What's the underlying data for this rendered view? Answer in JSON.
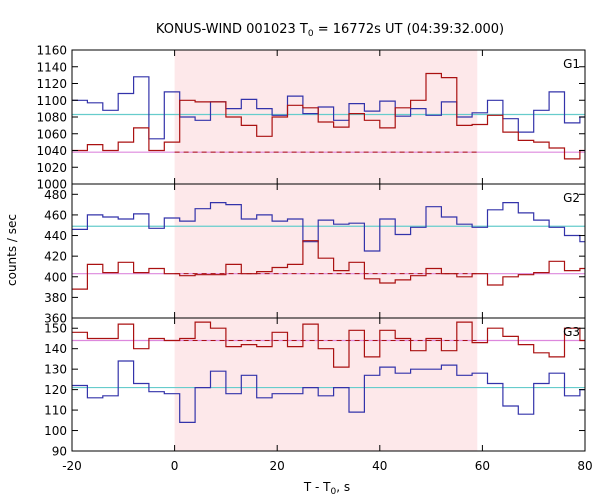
{
  "chart_data": {
    "type": "line",
    "title_main": "KONUS-WIND 001023 T",
    "title_sub": "0",
    "title_rest": " = 16772s UT (04:39:32.000)",
    "xlabel_main": "T - T",
    "xlabel_sub": "0",
    "xlabel_rest": ", s",
    "ylabel": "counts / sec",
    "xlim": [
      -20,
      80
    ],
    "xticks": [
      -20,
      0,
      20,
      40,
      60,
      80
    ],
    "xtick_labels": [
      "-20",
      "0",
      "20",
      "40",
      "60",
      "80"
    ],
    "shaded_interval": [
      0,
      59
    ],
    "shade_color": "#fde8ea",
    "colors": {
      "blue": "#3333aa",
      "red": "#aa1111",
      "bg_line": "#66cccc",
      "avg_line": "#dd88dd"
    },
    "panels": [
      {
        "name": "G1",
        "ylim": [
          1000,
          1160
        ],
        "yticks": [
          1000,
          1020,
          1040,
          1060,
          1080,
          1100,
          1120,
          1140,
          1160
        ],
        "ytick_labels": [
          "1000",
          "1020",
          "1040",
          "1060",
          "1080",
          "1100",
          "1120",
          "1140",
          "1160"
        ],
        "background_level": 1083,
        "average_level": 1038,
        "average_interval": [
          0,
          59
        ],
        "blue_series": {
          "x": [
            -20,
            -17,
            -14,
            -11,
            -8,
            -5,
            -2,
            1,
            4,
            7,
            10,
            13,
            16,
            19,
            22,
            25,
            28,
            31,
            34,
            37,
            40,
            43,
            46,
            49,
            52,
            55,
            58,
            61,
            64,
            67,
            70,
            73,
            76,
            79
          ],
          "y": [
            1100,
            1097,
            1088,
            1108,
            1128,
            1054,
            1110,
            1080,
            1076,
            1098,
            1090,
            1101,
            1090,
            1082,
            1105,
            1084,
            1092,
            1076,
            1096,
            1087,
            1099,
            1081,
            1090,
            1082,
            1098,
            1080,
            1085,
            1100,
            1078,
            1062,
            1088,
            1110,
            1073,
            1080
          ]
        },
        "red_series": {
          "x": [
            -20,
            -17,
            -14,
            -11,
            -8,
            -5,
            -2,
            1,
            4,
            7,
            10,
            13,
            16,
            19,
            22,
            25,
            28,
            31,
            34,
            37,
            40,
            43,
            46,
            49,
            52,
            55,
            58,
            61,
            64,
            67,
            70,
            73,
            76,
            79
          ],
          "y": [
            1040,
            1047,
            1040,
            1050,
            1067,
            1040,
            1050,
            1100,
            1098,
            1098,
            1080,
            1070,
            1057,
            1080,
            1094,
            1091,
            1074,
            1068,
            1084,
            1076,
            1067,
            1091,
            1100,
            1132,
            1127,
            1070,
            1071,
            1082,
            1062,
            1052,
            1050,
            1043,
            1030,
            1040
          ]
        }
      },
      {
        "name": "G2",
        "ylim": [
          360,
          490
        ],
        "yticks": [
          360,
          380,
          400,
          420,
          440,
          460,
          480
        ],
        "ytick_labels": [
          "360",
          "380",
          "400",
          "420",
          "440",
          "460",
          "480"
        ],
        "background_level": 449,
        "average_level": 403,
        "average_interval": [
          0,
          59
        ],
        "blue_series": {
          "x": [
            -20,
            -17,
            -14,
            -11,
            -8,
            -5,
            -2,
            1,
            4,
            7,
            10,
            13,
            16,
            19,
            22,
            25,
            28,
            31,
            34,
            37,
            40,
            43,
            46,
            49,
            52,
            55,
            58,
            61,
            64,
            67,
            70,
            73,
            76,
            79
          ],
          "y": [
            446,
            460,
            458,
            456,
            461,
            447,
            457,
            454,
            466,
            472,
            470,
            456,
            460,
            454,
            456,
            434,
            455,
            451,
            452,
            425,
            456,
            441,
            448,
            468,
            458,
            451,
            448,
            465,
            472,
            462,
            455,
            448,
            440,
            434
          ]
        },
        "red_series": {
          "x": [
            -20,
            -17,
            -14,
            -11,
            -8,
            -5,
            -2,
            1,
            4,
            7,
            10,
            13,
            16,
            19,
            22,
            25,
            28,
            31,
            34,
            37,
            40,
            43,
            46,
            49,
            52,
            55,
            58,
            61,
            64,
            67,
            70,
            73,
            76,
            79
          ],
          "y": [
            388,
            412,
            404,
            414,
            404,
            408,
            403,
            401,
            402,
            402,
            412,
            403,
            405,
            409,
            412,
            435,
            418,
            406,
            414,
            398,
            394,
            397,
            401,
            408,
            403,
            400,
            403,
            392,
            400,
            402,
            404,
            415,
            406,
            408
          ]
        }
      },
      {
        "name": "G3",
        "ylim": [
          90,
          155
        ],
        "yticks": [
          90,
          100,
          110,
          120,
          130,
          140,
          150
        ],
        "ytick_labels": [
          "90",
          "100",
          "110",
          "120",
          "130",
          "140",
          "150"
        ],
        "background_level": 121,
        "average_level": 144,
        "average_interval": [
          0,
          59
        ],
        "blue_series": {
          "x": [
            -20,
            -17,
            -14,
            -11,
            -8,
            -5,
            -2,
            1,
            4,
            7,
            10,
            13,
            16,
            19,
            22,
            25,
            28,
            31,
            34,
            37,
            40,
            43,
            46,
            49,
            52,
            55,
            58,
            61,
            64,
            67,
            70,
            73,
            76,
            79
          ],
          "y": [
            122,
            116,
            117,
            134,
            123,
            119,
            118,
            104,
            121,
            129,
            118,
            127,
            116,
            118,
            118,
            121,
            117,
            121,
            109,
            127,
            131,
            128,
            130,
            130,
            132,
            127,
            128,
            123,
            112,
            108,
            123,
            128,
            117,
            120
          ]
        },
        "red_series": {
          "x": [
            -20,
            -17,
            -14,
            -11,
            -8,
            -5,
            -2,
            1,
            4,
            7,
            10,
            13,
            16,
            19,
            22,
            25,
            28,
            31,
            34,
            37,
            40,
            43,
            46,
            49,
            52,
            55,
            58,
            61,
            64,
            67,
            70,
            73,
            76,
            79
          ],
          "y": [
            148,
            145,
            145,
            152,
            140,
            145,
            144,
            145,
            153,
            150,
            141,
            142,
            141,
            148,
            141,
            152,
            140,
            131,
            149,
            136,
            149,
            145,
            139,
            145,
            139,
            153,
            143,
            150,
            146,
            142,
            138,
            136,
            150,
            144
          ]
        }
      }
    ]
  }
}
